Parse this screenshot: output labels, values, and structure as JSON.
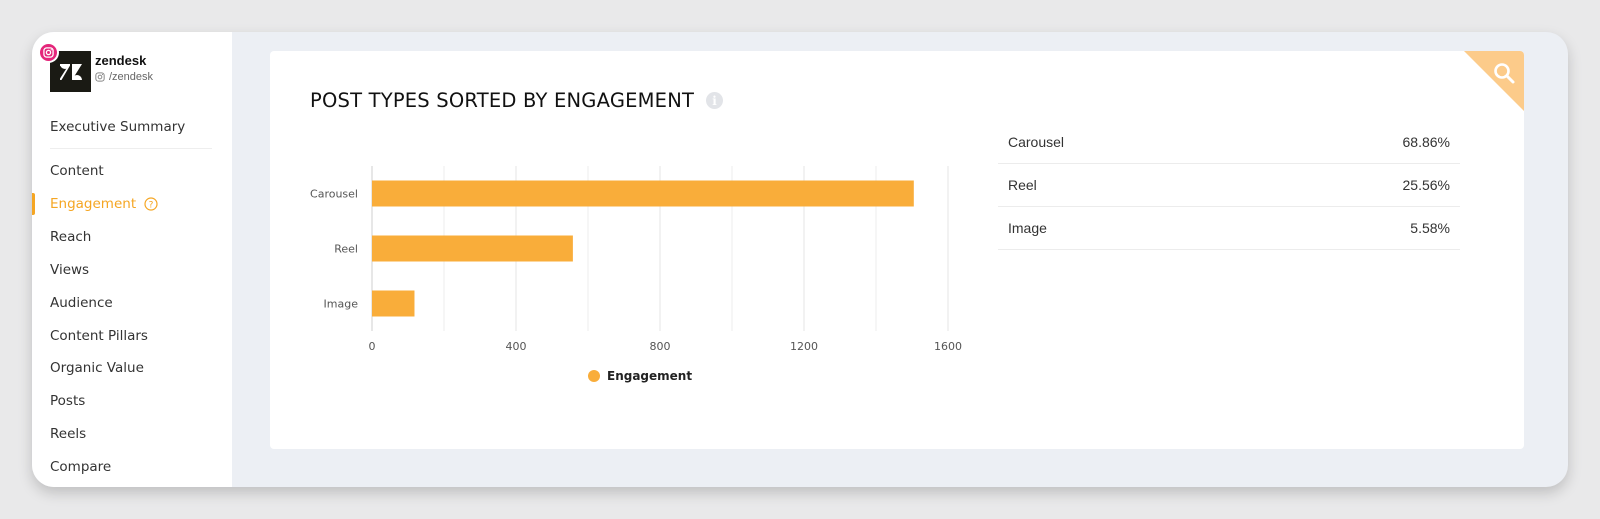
{
  "profile": {
    "name": "zendesk",
    "handle": "/zendesk",
    "network_icon": "instagram-icon",
    "badge_color": "#e4267a"
  },
  "sidebar": {
    "items": [
      {
        "label": "Executive Summary"
      },
      {
        "label": "Content"
      },
      {
        "label": "Engagement",
        "active": true
      },
      {
        "label": "Reach"
      },
      {
        "label": "Views"
      },
      {
        "label": "Audience"
      },
      {
        "label": "Content Pillars"
      },
      {
        "label": "Organic Value"
      },
      {
        "label": "Posts"
      },
      {
        "label": "Reels"
      },
      {
        "label": "Compare"
      }
    ]
  },
  "card": {
    "title": "POST TYPES SORTED BY ENGAGEMENT",
    "accent_color": "#f5a623"
  },
  "chart_data": {
    "type": "bar",
    "orientation": "horizontal",
    "title": "POST TYPES SORTED BY ENGAGEMENT",
    "categories": [
      "Carousel",
      "Reel",
      "Image"
    ],
    "series": [
      {
        "name": "Engagement",
        "values": [
          1505,
          558,
          118
        ],
        "color": "#f9ad3a"
      }
    ],
    "xlim": [
      0,
      1600
    ],
    "xticks": [
      "0",
      "400",
      "800",
      "1200",
      "1600"
    ],
    "xlabel": "",
    "ylabel": "",
    "grid": true,
    "legend_position": "bottom-center"
  },
  "breakdown": [
    {
      "label": "Carousel",
      "value": "68.86%"
    },
    {
      "label": "Reel",
      "value": "25.56%"
    },
    {
      "label": "Image",
      "value": "5.58%"
    }
  ]
}
